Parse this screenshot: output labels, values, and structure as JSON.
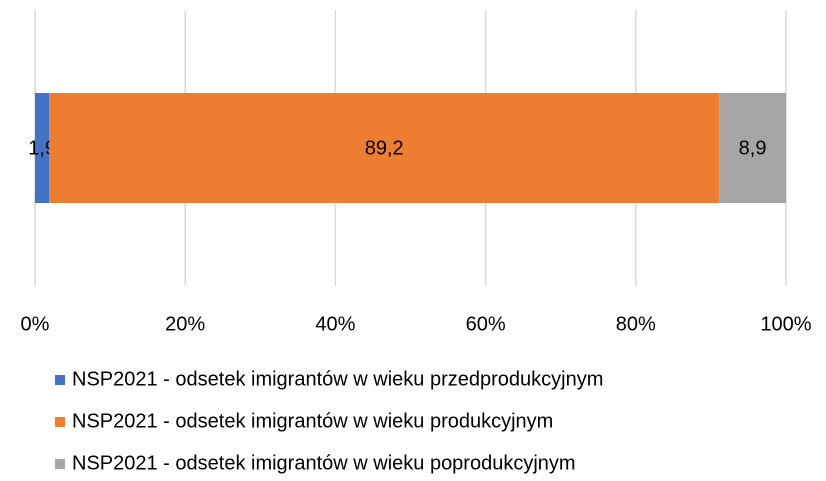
{
  "chart_data": {
    "type": "stacked-bar-horizontal",
    "categories": [
      null
    ],
    "series": [
      {
        "name": "NSP2021 - odsetek imigrantów w wieku przedprodukcyjnym",
        "color": "#4472c4",
        "values": [
          1.9
        ],
        "value_labels": [
          "1,9"
        ]
      },
      {
        "name": "NSP2021 - odsetek imigrantów w wieku produkcyjnym",
        "color": "#ed7d31",
        "values": [
          89.2
        ],
        "value_labels": [
          "89,2"
        ]
      },
      {
        "name": "NSP2021 - odsetek imigrantów w wieku poprodukcyjnym",
        "color": "#a5a5a5",
        "values": [
          8.9
        ],
        "value_labels": [
          "8,9"
        ]
      }
    ],
    "xlim": [
      0,
      100
    ],
    "xticks": [
      {
        "value": 0,
        "label": "0%"
      },
      {
        "value": 20,
        "label": "20%"
      },
      {
        "value": 40,
        "label": "40%"
      },
      {
        "value": 60,
        "label": "60%"
      },
      {
        "value": 80,
        "label": "80%"
      },
      {
        "value": 100,
        "label": "100%"
      }
    ],
    "grid": true,
    "legend": "bottom"
  }
}
